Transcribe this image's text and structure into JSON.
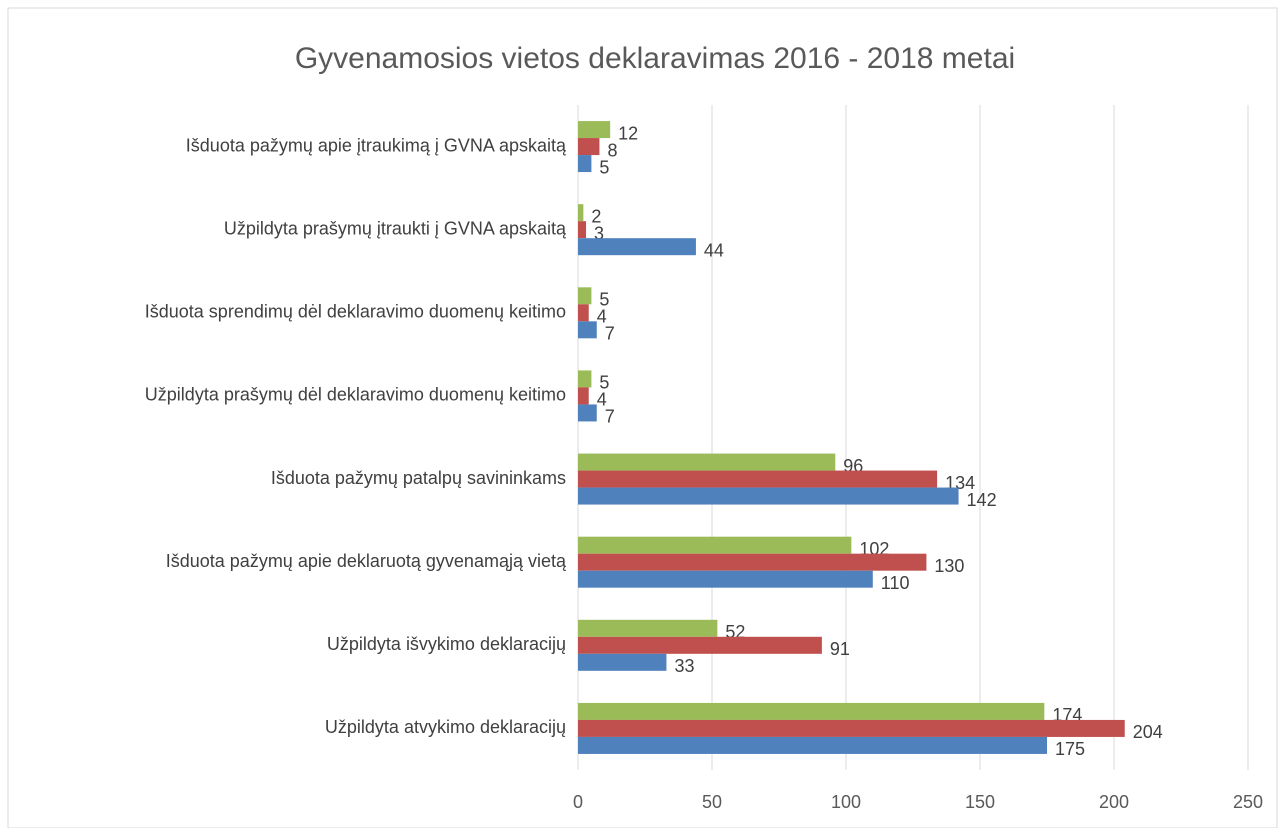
{
  "chart_data": {
    "type": "bar",
    "orientation": "horizontal",
    "title": "Gyvenamosios vietos deklaravimas 2016 - 2018 metai",
    "categories": [
      "Išduota pažymų apie įtraukimą į GVNA apskaitą",
      "Užpildyta prašymų įtraukti į GVNA apskaitą",
      "Išduota sprendimų dėl deklaravimo duomenų keitimo",
      "Užpildyta prašymų dėl deklaravimo duomenų keitimo",
      "Išduota pažymų patalpų savininkams",
      "Išduota pažymų apie deklaruotą gyvenamąją vietą",
      "Užpildyta išvykimo deklaracijų",
      "Užpildyta atvykimo deklaracijų"
    ],
    "series": [
      {
        "color": "#9bbb59",
        "values": [
          12,
          2,
          5,
          5,
          96,
          102,
          52,
          174
        ]
      },
      {
        "color": "#c0504d",
        "values": [
          8,
          3,
          4,
          4,
          134,
          130,
          91,
          204
        ]
      },
      {
        "color": "#4f81bd",
        "values": [
          5,
          44,
          7,
          7,
          142,
          110,
          33,
          175
        ]
      }
    ],
    "xlim": [
      0,
      250
    ],
    "xticks": [
      0,
      50,
      100,
      150,
      200,
      250
    ],
    "grid": true
  }
}
